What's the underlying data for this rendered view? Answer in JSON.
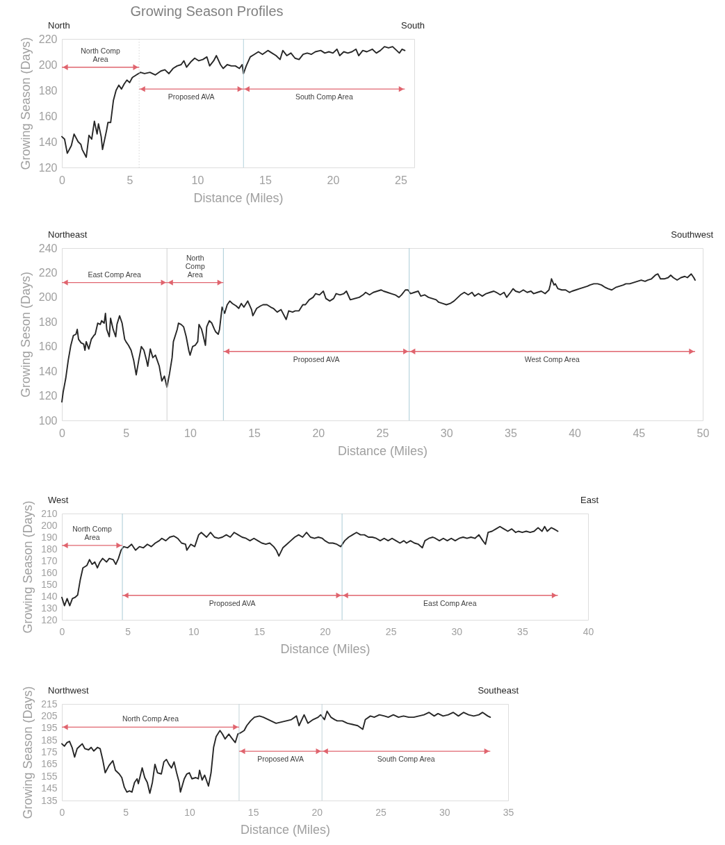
{
  "chart_data": [
    {
      "type": "line",
      "title": "Growing Season Profiles",
      "xlabel": "Distance (Miles)",
      "ylabel": "Growing Season (Days)",
      "annotations": [
        "North",
        "South",
        "North Comp Area",
        "Proposed AVA",
        "South Comp Area"
      ],
      "xlim": [
        0,
        26
      ],
      "xticks": [
        0,
        5,
        10,
        15,
        20,
        25
      ],
      "ylim": [
        120,
        220
      ],
      "yticks": [
        120,
        140,
        160,
        180,
        200,
        220
      ],
      "series": [
        {
          "color": "#262626",
          "x": [
            0,
            0.2,
            0.4,
            0.7,
            0.9,
            1.2,
            1.4,
            1.5,
            1.8,
            2.0,
            2.2,
            2.4,
            2.6,
            2.7,
            2.9,
            3.0,
            3.3,
            3.4,
            3.6,
            3.8,
            4.0,
            4.2,
            4.4,
            4.6,
            4.8,
            5.0,
            5.2,
            5.5,
            5.8,
            6.1,
            6.5,
            6.9,
            7.3,
            7.6,
            7.9,
            8.2,
            8.5,
            8.8,
            9.0,
            9.2,
            9.5,
            9.8,
            10.1,
            10.4,
            10.7,
            10.9,
            11.2,
            11.4,
            11.7,
            11.9,
            12.2,
            12.5,
            12.8,
            13.1,
            13.3,
            13.4,
            13.6,
            13.9,
            14.2,
            14.5,
            14.8,
            15.2,
            15.5,
            15.8,
            16.1,
            16.3,
            16.6,
            16.9,
            17.2,
            17.5,
            17.8,
            18.1,
            18.4,
            18.7,
            19.1,
            19.4,
            19.7,
            20.0,
            20.3,
            20.5,
            20.8,
            21.1,
            21.4,
            21.7,
            21.9,
            22.2,
            22.5,
            22.9,
            23.2,
            23.5,
            23.8,
            24.1,
            24.4,
            24.7,
            24.9,
            25.1,
            25.3
          ],
          "values": [
            144,
            142,
            131,
            137,
            146,
            140,
            138,
            134,
            128,
            145,
            142,
            156,
            146,
            154,
            144,
            134,
            149,
            155,
            155,
            172,
            180,
            184,
            181,
            185,
            188,
            186,
            190,
            192,
            194,
            193,
            194,
            192,
            195,
            196,
            193,
            197,
            199,
            200,
            203,
            198,
            202,
            205,
            203,
            204,
            206,
            199,
            203,
            207,
            200,
            197,
            200,
            199,
            199,
            197,
            200,
            193,
            199,
            206,
            208,
            210,
            208,
            211,
            209,
            207,
            204,
            211,
            207,
            209,
            205,
            204,
            208,
            209,
            208,
            210,
            211,
            209,
            210,
            209,
            212,
            207,
            210,
            209,
            210,
            212,
            207,
            211,
            210,
            212,
            209,
            211,
            214,
            213,
            214,
            211,
            209,
            212,
            211
          ]
        }
      ],
      "ref_lines": [
        {
          "axis": "x",
          "value": 5.7,
          "color": "#d4d4d4",
          "line_style": "dotted"
        },
        {
          "axis": "x",
          "value": 13.4,
          "color": "#b4d3dc"
        }
      ]
    },
    {
      "type": "line",
      "xlabel": "Distance (Miles)",
      "ylabel": "Growing Seson (Days)",
      "annotations": [
        "Northeast",
        "Southwest",
        "East Comp Area",
        "North Comp Area",
        "Proposed AVA",
        "West Comp Area"
      ],
      "xlim": [
        0,
        50
      ],
      "xticks": [
        0,
        5,
        10,
        15,
        20,
        25,
        30,
        35,
        40,
        45,
        50
      ],
      "ylim": [
        100,
        240
      ],
      "yticks": [
        100,
        120,
        140,
        160,
        180,
        200,
        220,
        240
      ],
      "series": [
        {
          "color": "#262626",
          "x": [
            0,
            0.1,
            0.3,
            0.5,
            0.7,
            0.9,
            1.1,
            1.2,
            1.3,
            1.5,
            1.7,
            1.8,
            1.9,
            2.1,
            2.3,
            2.5,
            2.6,
            2.8,
            3.0,
            3.1,
            3.3,
            3.4,
            3.5,
            3.7,
            3.8,
            4.0,
            4.2,
            4.3,
            4.5,
            4.7,
            4.9,
            5.0,
            5.2,
            5.4,
            5.6,
            5.8,
            6.0,
            6.2,
            6.4,
            6.6,
            6.7,
            6.9,
            7.1,
            7.3,
            7.4,
            7.6,
            7.8,
            8.0,
            8.2,
            8.4,
            8.6,
            8.7,
            9.0,
            9.1,
            9.3,
            9.5,
            9.7,
            9.9,
            10.0,
            10.2,
            10.4,
            10.6,
            10.7,
            10.9,
            11.0,
            11.2,
            11.3,
            11.5,
            11.7,
            11.9,
            12.0,
            12.2,
            12.3,
            12.5,
            12.7,
            12.9,
            13.1,
            13.3,
            13.6,
            13.8,
            14.0,
            14.2,
            14.5,
            14.8,
            14.9,
            15.2,
            15.5,
            15.7,
            16.0,
            16.3,
            16.5,
            16.8,
            17.1,
            17.5,
            17.7,
            18.0,
            18.2,
            18.5,
            18.8,
            19.0,
            19.3,
            19.6,
            19.8,
            20.1,
            20.4,
            20.6,
            20.9,
            21.2,
            21.4,
            21.7,
            22.0,
            22.2,
            22.5,
            23.2,
            23.5,
            23.7,
            24.0,
            24.3,
            24.6,
            24.9,
            25.1,
            25.4,
            25.7,
            26.0,
            26.3,
            26.5,
            26.8,
            27.0,
            27.2,
            27.5,
            27.8,
            28.0,
            28.3,
            28.6,
            28.9,
            29.2,
            29.4,
            29.7,
            30.0,
            30.3,
            30.6,
            30.8,
            31.1,
            31.4,
            31.7,
            32.0,
            32.2,
            32.5,
            32.8,
            33.1,
            33.4,
            33.7,
            33.9,
            34.2,
            34.5,
            34.7,
            35.0,
            35.2,
            35.4,
            35.7,
            36.0,
            36.3,
            36.6,
            36.8,
            37.1,
            37.4,
            37.7,
            38.0,
            38.1,
            38.2,
            38.4,
            38.5,
            38.7,
            39.0,
            39.3,
            39.6,
            39.8,
            40.1,
            40.4,
            40.7,
            41.0,
            41.2,
            41.5,
            41.8,
            42.1,
            42.4,
            42.6,
            42.9,
            43.2,
            43.5,
            43.8,
            44.0,
            44.3,
            44.6,
            44.9,
            45.2,
            45.5,
            45.7,
            46.0,
            46.3,
            46.5,
            46.7,
            47.0,
            47.3,
            47.5,
            47.7,
            48.0,
            48.3,
            48.6,
            48.8,
            49.1,
            49.3,
            49.4
          ],
          "values": [
            115,
            123,
            134,
            149,
            161,
            169,
            170,
            174,
            166,
            163,
            162,
            157,
            164,
            158,
            166,
            169,
            170,
            179,
            178,
            181,
            179,
            187,
            174,
            168,
            183,
            174,
            168,
            178,
            185,
            179,
            166,
            164,
            161,
            157,
            149,
            137,
            149,
            160,
            157,
            149,
            144,
            158,
            151,
            153,
            150,
            144,
            132,
            136,
            127,
            138,
            151,
            164,
            174,
            179,
            178,
            176,
            168,
            157,
            153,
            160,
            161,
            164,
            178,
            174,
            170,
            161,
            176,
            181,
            179,
            174,
            172,
            170,
            174,
            192,
            187,
            194,
            197,
            195,
            193,
            191,
            195,
            192,
            197,
            190,
            185,
            191,
            193,
            194,
            194,
            192,
            191,
            188,
            190,
            182,
            189,
            188,
            189,
            189,
            194,
            194,
            198,
            200,
            203,
            202,
            205,
            199,
            197,
            199,
            203,
            202,
            203,
            205,
            198,
            200,
            202,
            204,
            202,
            204,
            205,
            206,
            205,
            204,
            203,
            202,
            200,
            202,
            206,
            206,
            203,
            204,
            205,
            201,
            202,
            200,
            199,
            198,
            196,
            195,
            194,
            195,
            197,
            199,
            202,
            204,
            202,
            204,
            201,
            203,
            201,
            203,
            204,
            205,
            204,
            202,
            204,
            200,
            204,
            207,
            205,
            204,
            206,
            204,
            205,
            203,
            204,
            205,
            203,
            206,
            210,
            215,
            210,
            211,
            207,
            206,
            206,
            204,
            205,
            206,
            207,
            208,
            209,
            210,
            211,
            211,
            210,
            208,
            207,
            206,
            208,
            209,
            210,
            211,
            211,
            212,
            213,
            214,
            213,
            214,
            215,
            218,
            219,
            215,
            215,
            216,
            218,
            216,
            214,
            216,
            217,
            216,
            219,
            216,
            214
          ]
        }
      ],
      "ref_lines": [
        {
          "axis": "x",
          "value": 8.2,
          "color": "#d0d0d0"
        },
        {
          "axis": "x",
          "value": 12.6,
          "color": "#a9cbd6"
        },
        {
          "axis": "x",
          "value": 27.1,
          "color": "#a9cbd6"
        }
      ]
    },
    {
      "type": "line",
      "xlabel": "Distance (Miles)",
      "ylabel": "Growing Season (Days)",
      "annotations": [
        "West",
        "East",
        "North Comp Area",
        "Proposed AVA",
        "East Comp Area"
      ],
      "xlim": [
        0,
        40
      ],
      "xticks": [
        0,
        5,
        10,
        15,
        20,
        25,
        30,
        35,
        40
      ],
      "ylim": [
        120,
        210
      ],
      "yticks": [
        120,
        130,
        140,
        150,
        160,
        170,
        180,
        190,
        200,
        210
      ],
      "series": [
        {
          "color": "#262626",
          "x": [
            0,
            0.2,
            0.4,
            0.6,
            0.8,
            1.0,
            1.2,
            1.4,
            1.6,
            1.9,
            2.1,
            2.3,
            2.5,
            2.7,
            2.9,
            3.1,
            3.4,
            3.6,
            3.9,
            4.1,
            4.3,
            4.5,
            4.7,
            5.0,
            5.3,
            5.6,
            5.9,
            6.2,
            6.5,
            6.8,
            7.1,
            7.4,
            7.6,
            7.9,
            8.2,
            8.5,
            8.8,
            9.1,
            9.4,
            9.5,
            9.8,
            10.1,
            10.4,
            10.6,
            11.0,
            11.3,
            11.6,
            11.9,
            12.2,
            12.5,
            12.8,
            13.1,
            13.4,
            13.7,
            14.0,
            14.3,
            14.6,
            14.9,
            15.2,
            15.5,
            15.8,
            16.1,
            16.3,
            16.5,
            16.8,
            17.1,
            17.4,
            17.7,
            18.0,
            18.3,
            18.6,
            18.9,
            19.2,
            19.5,
            19.8,
            20.0,
            20.3,
            20.6,
            20.9,
            21.2,
            21.5,
            21.8,
            22.1,
            22.4,
            22.7,
            23.0,
            23.3,
            23.6,
            23.9,
            24.2,
            24.5,
            24.8,
            25.1,
            25.4,
            25.7,
            26.0,
            26.2,
            26.5,
            26.8,
            27.1,
            27.4,
            27.6,
            27.9,
            28.2,
            28.4,
            28.7,
            29.0,
            29.3,
            29.6,
            29.9,
            30.2,
            30.5,
            30.8,
            31.1,
            31.4,
            31.7,
            32.0,
            32.2,
            32.4,
            32.7,
            33.0,
            33.3,
            33.6,
            33.9,
            34.2,
            34.5,
            34.7,
            35.0,
            35.3,
            35.6,
            35.9,
            36.2,
            36.5,
            36.7,
            36.9,
            37.2,
            37.4,
            37.7
          ],
          "values": [
            139,
            132,
            138,
            132,
            138,
            139,
            141,
            154,
            164,
            166,
            171,
            167,
            169,
            164,
            169,
            172,
            169,
            172,
            171,
            167,
            172,
            179,
            182,
            181,
            184,
            179,
            182,
            181,
            184,
            182,
            185,
            187,
            189,
            187,
            190,
            191,
            189,
            185,
            184,
            179,
            184,
            182,
            192,
            194,
            190,
            194,
            190,
            189,
            190,
            192,
            190,
            194,
            192,
            190,
            189,
            187,
            189,
            187,
            185,
            184,
            185,
            182,
            179,
            174,
            181,
            184,
            187,
            190,
            192,
            190,
            194,
            190,
            189,
            190,
            189,
            187,
            185,
            185,
            184,
            182,
            187,
            190,
            192,
            194,
            192,
            192,
            190,
            190,
            189,
            187,
            189,
            187,
            189,
            187,
            185,
            187,
            185,
            187,
            185,
            184,
            181,
            187,
            189,
            190,
            189,
            187,
            189,
            187,
            189,
            187,
            189,
            190,
            189,
            190,
            189,
            192,
            187,
            184,
            194,
            195,
            197,
            199,
            197,
            195,
            197,
            194,
            195,
            194,
            195,
            194,
            195,
            198,
            195,
            199,
            195,
            198,
            197,
            195
          ]
        }
      ],
      "ref_lines": [
        {
          "axis": "x",
          "value": 4.6,
          "color": "#a9cbd6"
        },
        {
          "axis": "x",
          "value": 21.3,
          "color": "#a9cbd6"
        }
      ]
    },
    {
      "type": "line",
      "xlabel": "Distance (Miles)",
      "ylabel": "Growing Season (Days)",
      "annotations": [
        "Northwest",
        "Southeast",
        "North Comp Area",
        "Proposed AVA",
        "South Comp Area"
      ],
      "xlim": [
        0,
        35
      ],
      "xticks": [
        0,
        5,
        10,
        15,
        20,
        25,
        30,
        35
      ],
      "ylim": [
        135,
        215
      ],
      "yticks": [
        135,
        145,
        155,
        165,
        175,
        185,
        195,
        205,
        215
      ],
      "series": [
        {
          "color": "#262626",
          "x": [
            0,
            0.2,
            0.4,
            0.6,
            0.8,
            1.0,
            1.2,
            1.4,
            1.6,
            1.8,
            2.1,
            2.3,
            2.5,
            2.8,
            3.0,
            3.2,
            3.4,
            3.7,
            4.0,
            4.2,
            4.5,
            4.7,
            4.9,
            5.1,
            5.3,
            5.5,
            5.7,
            5.9,
            6.0,
            6.3,
            6.5,
            6.7,
            6.9,
            7.1,
            7.3,
            7.5,
            7.8,
            8.0,
            8.2,
            8.4,
            8.6,
            8.8,
            9.0,
            9.2,
            9.3,
            9.6,
            9.8,
            10.0,
            10.2,
            10.5,
            10.7,
            10.8,
            11.0,
            11.2,
            11.5,
            11.7,
            11.9,
            12.1,
            12.4,
            12.6,
            12.8,
            13.1,
            13.3,
            13.6,
            13.8,
            14.0,
            14.3,
            14.5,
            14.8,
            15.1,
            15.5,
            15.8,
            16.2,
            16.4,
            16.8,
            17.2,
            17.6,
            18.0,
            18.4,
            18.6,
            19.0,
            19.3,
            19.7,
            20.1,
            20.3,
            20.6,
            20.8,
            21.1,
            21.4,
            21.6,
            22.0,
            22.4,
            22.8,
            23.2,
            23.6,
            23.8,
            24.2,
            24.5,
            24.9,
            25.3,
            25.6,
            26.0,
            26.4,
            26.8,
            27.2,
            27.6,
            28.0,
            28.4,
            28.8,
            29.2,
            29.5,
            29.9,
            30.3,
            30.7,
            31.1,
            31.5,
            31.9,
            32.3,
            32.7,
            33.0,
            33.4,
            33.6
          ],
          "values": [
            182,
            180,
            183,
            184,
            179,
            171,
            178,
            180,
            182,
            178,
            177,
            179,
            176,
            179,
            178,
            169,
            158,
            164,
            168,
            160,
            157,
            154,
            146,
            142,
            143,
            142,
            150,
            153,
            149,
            162,
            154,
            150,
            141,
            150,
            165,
            158,
            157,
            167,
            169,
            165,
            162,
            167,
            158,
            150,
            142,
            153,
            157,
            158,
            153,
            154,
            153,
            160,
            152,
            156,
            147,
            158,
            179,
            188,
            193,
            190,
            186,
            190,
            187,
            183,
            190,
            191,
            193,
            197,
            201,
            204,
            205,
            204,
            202,
            201,
            199,
            200,
            201,
            202,
            205,
            197,
            206,
            199,
            202,
            204,
            206,
            202,
            209,
            204,
            202,
            201,
            201,
            199,
            198,
            197,
            194,
            202,
            205,
            204,
            206,
            205,
            204,
            206,
            204,
            205,
            204,
            204,
            205,
            206,
            208,
            205,
            207,
            205,
            206,
            208,
            205,
            208,
            206,
            205,
            206,
            208,
            205,
            204
          ]
        }
      ],
      "ref_lines": [
        {
          "axis": "x",
          "value": 13.9,
          "color": "#c3d3d8"
        },
        {
          "axis": "x",
          "value": 20.4,
          "color": "#c3d3d8"
        }
      ]
    }
  ]
}
